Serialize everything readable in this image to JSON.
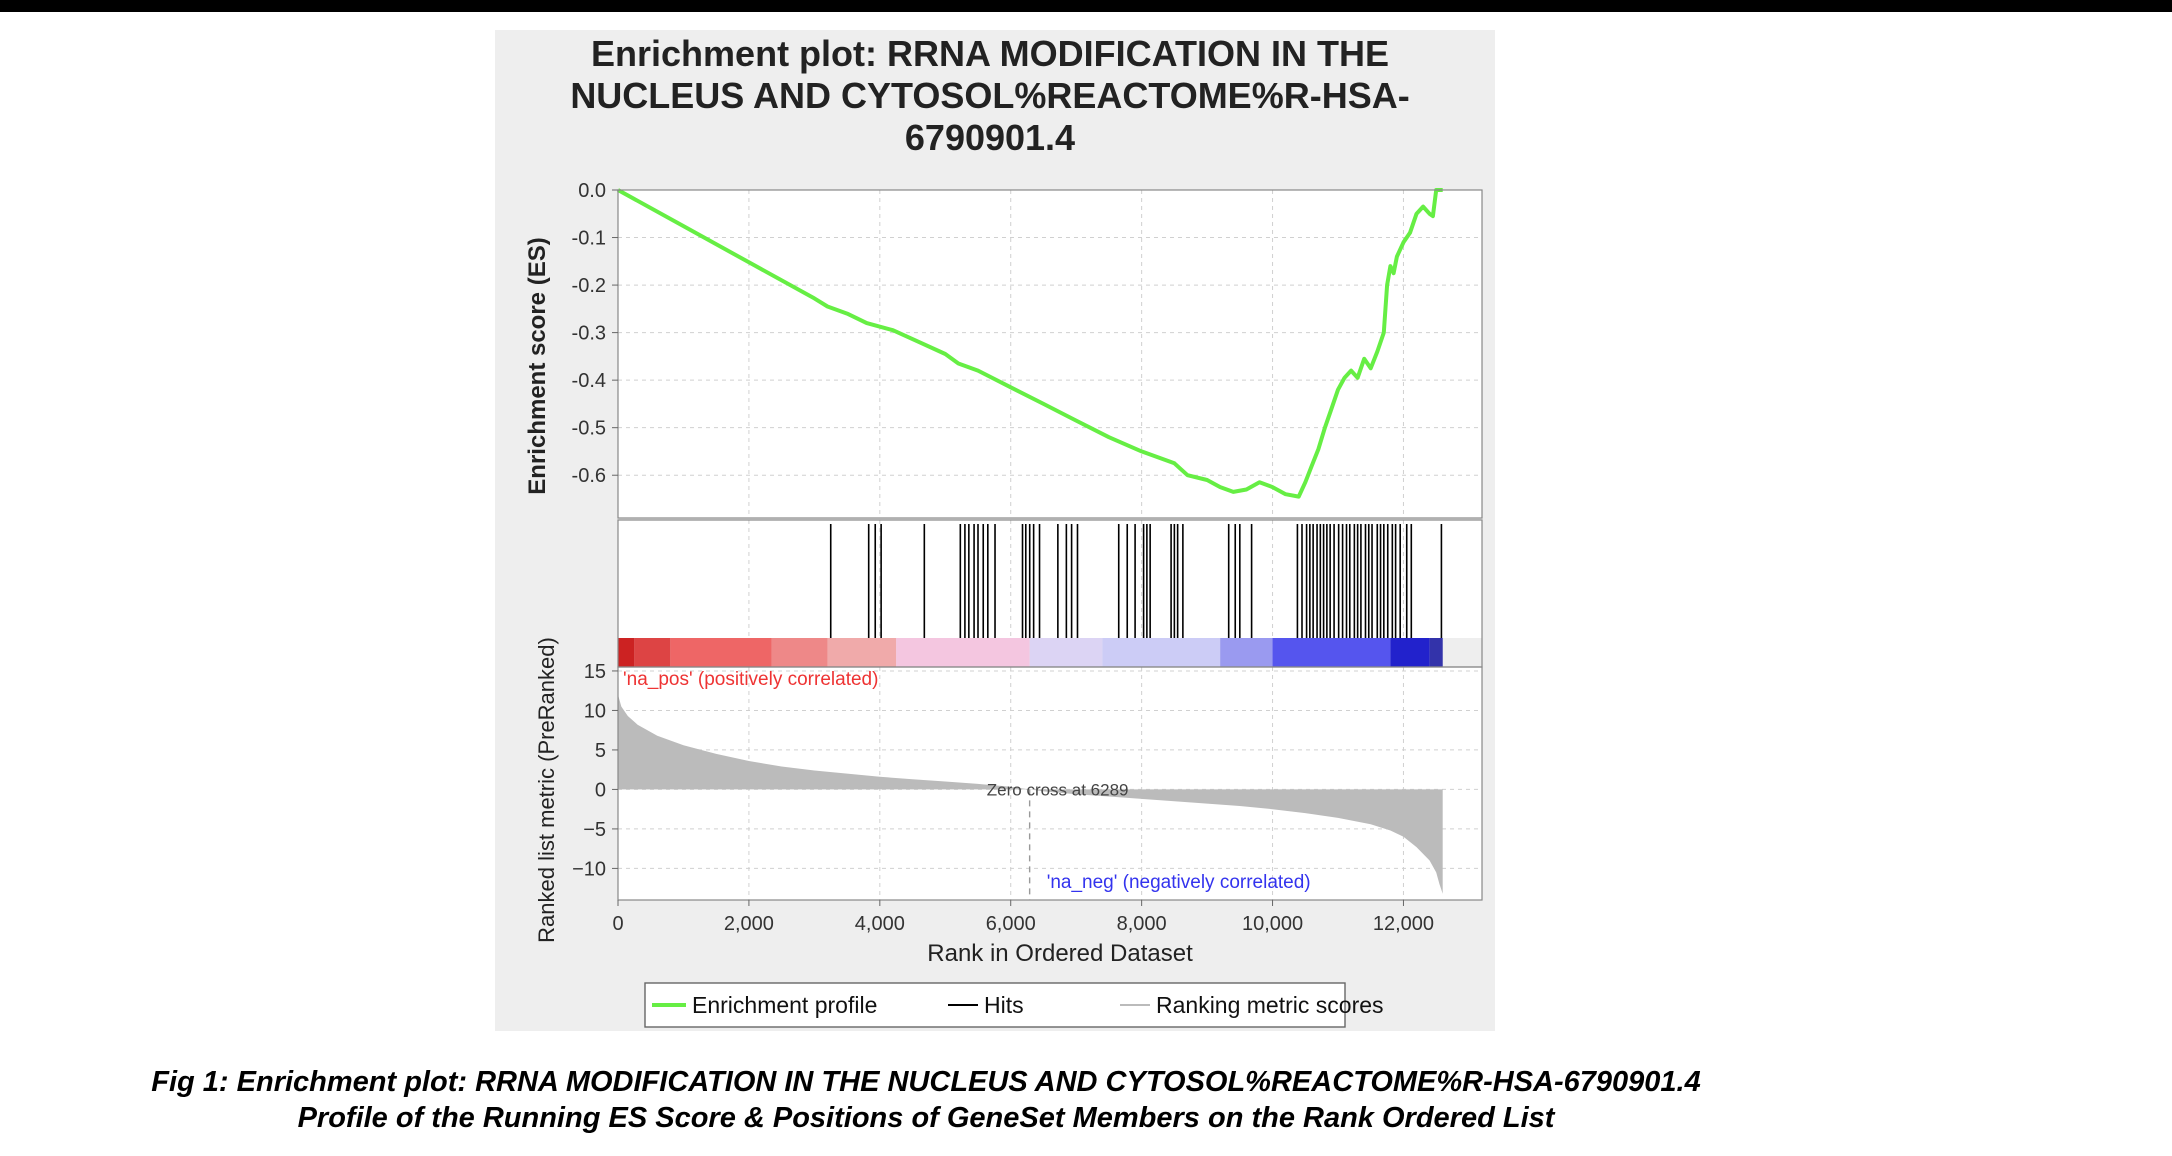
{
  "figure": {
    "caption_line1": "Fig 1: Enrichment plot: RRNA MODIFICATION IN THE NUCLEUS AND CYTOSOL%REACTOME%R-HSA-6790901.4",
    "caption_line2": "Profile of the Running ES Score & Positions of GeneSet Members on the Rank Ordered List"
  },
  "chart_data": {
    "type": "line",
    "title_lines": [
      "Enrichment plot: RRNA MODIFICATION IN THE",
      "NUCLEUS AND CYTOSOL%REACTOME%R-HSA-",
      "6790901.4"
    ],
    "xlabel": "Rank in Ordered Dataset",
    "xlim": [
      0,
      13200
    ],
    "x_ticks": [
      0,
      2000,
      4000,
      6000,
      8000,
      10000,
      12000
    ],
    "x_tick_labels": [
      "0",
      "2,000",
      "4,000",
      "6,000",
      "8,000",
      "10,000",
      "12,000"
    ],
    "es_panel": {
      "ylabel": "Enrichment score (ES)",
      "ylim": [
        -0.69,
        0.0
      ],
      "y_ticks": [
        0.0,
        -0.1,
        -0.2,
        -0.3,
        -0.4,
        -0.5,
        -0.6
      ],
      "y_tick_labels": [
        "0.0",
        "-0.1",
        "-0.2",
        "-0.3",
        "-0.4",
        "-0.5",
        "-0.6"
      ],
      "series": [
        {
          "name": "Enrichment profile",
          "color": "#66ee44",
          "x": [
            0,
            1000,
            2000,
            3000,
            3200,
            3500,
            3800,
            4200,
            4600,
            5000,
            5200,
            5500,
            6000,
            6500,
            7000,
            7500,
            8000,
            8500,
            8700,
            9000,
            9200,
            9400,
            9600,
            9800,
            10000,
            10200,
            10400,
            10500,
            10600,
            10700,
            10800,
            10900,
            11000,
            11100,
            11200,
            11300,
            11400,
            11500,
            11600,
            11700,
            11750,
            11800,
            11850,
            11900,
            12000,
            12100,
            12200,
            12300,
            12400,
            12450,
            12500,
            12600
          ],
          "y": [
            0.0,
            -0.076,
            -0.152,
            -0.228,
            -0.245,
            -0.26,
            -0.28,
            -0.295,
            -0.32,
            -0.345,
            -0.365,
            -0.38,
            -0.415,
            -0.45,
            -0.485,
            -0.52,
            -0.55,
            -0.575,
            -0.6,
            -0.61,
            -0.625,
            -0.635,
            -0.63,
            -0.615,
            -0.625,
            -0.64,
            -0.645,
            -0.615,
            -0.58,
            -0.545,
            -0.5,
            -0.46,
            -0.42,
            -0.395,
            -0.38,
            -0.395,
            -0.355,
            -0.375,
            -0.34,
            -0.3,
            -0.2,
            -0.16,
            -0.175,
            -0.14,
            -0.11,
            -0.09,
            -0.05,
            -0.035,
            -0.05,
            -0.055,
            0.0,
            0.0
          ]
        }
      ]
    },
    "hits": {
      "name": "Hits",
      "x": [
        3250,
        3830,
        3930,
        4020,
        4680,
        5230,
        5300,
        5360,
        5440,
        5500,
        5580,
        5650,
        5760,
        6180,
        6230,
        6290,
        6350,
        6440,
        6720,
        6850,
        6930,
        7020,
        7650,
        7780,
        7900,
        8030,
        8080,
        8130,
        8450,
        8500,
        8550,
        8630,
        9330,
        9430,
        9500,
        9680,
        10380,
        10450,
        10520,
        10570,
        10620,
        10680,
        10730,
        10780,
        10830,
        10880,
        10940,
        11010,
        11070,
        11130,
        11180,
        11250,
        11300,
        11350,
        11420,
        11470,
        11520,
        11600,
        11650,
        11700,
        11760,
        11830,
        11880,
        11950,
        12050,
        12120,
        12580
      ]
    },
    "rank_colorbar": {
      "colors": [
        "#cc2222",
        "#dd4444",
        "#ee6666",
        "#ee8888",
        "#f0aaaa",
        "#f4c6e0",
        "#dcd4f4",
        "#ccccf6",
        "#9a9af0",
        "#5555ee",
        "#2222cc",
        "#3333aa"
      ],
      "breaks": [
        0,
        250,
        800,
        2350,
        3200,
        4250,
        6289,
        7400,
        9200,
        10000,
        11800,
        12400,
        12600
      ]
    },
    "metric_panel": {
      "ylabel": "Ranked list metric (PreRanked)",
      "ylim": [
        -14,
        15.5
      ],
      "y_ticks": [
        15,
        10,
        5,
        0,
        -5,
        -10
      ],
      "y_tick_labels": [
        "15",
        "10",
        "5",
        "0",
        "−5",
        "−10"
      ],
      "series": [
        {
          "name": "Ranking metric scores",
          "color": "#bbbbbb",
          "x": [
            0,
            50,
            150,
            300,
            600,
            1000,
            1500,
            2000,
            2500,
            3000,
            3500,
            4000,
            4500,
            5000,
            5500,
            6000,
            6289,
            6500,
            7000,
            7500,
            8000,
            8500,
            9000,
            9500,
            10000,
            10500,
            11000,
            11500,
            11800,
            12000,
            12200,
            12400,
            12500,
            12550,
            12600
          ],
          "y": [
            12,
            10.5,
            9.3,
            8.2,
            6.8,
            5.6,
            4.5,
            3.6,
            2.9,
            2.4,
            2.0,
            1.6,
            1.3,
            1.0,
            0.7,
            0.35,
            0.0,
            -0.25,
            -0.6,
            -0.9,
            -1.2,
            -1.5,
            -1.8,
            -2.1,
            -2.5,
            -3.0,
            -3.6,
            -4.4,
            -5.2,
            -6.0,
            -7.3,
            -9.0,
            -10.5,
            -12.0,
            -13.2
          ]
        }
      ],
      "zero_cross_label": "Zero cross at 6289",
      "zero_cross_x": 6289,
      "pos_label": "'na_pos' (positively correlated)",
      "pos_color": "#ee3333",
      "neg_label": "'na_neg' (negatively correlated)",
      "neg_color": "#3333ee"
    },
    "legend": {
      "position": "bottom",
      "entries": [
        {
          "label": "Enrichment profile",
          "color": "#66ee44"
        },
        {
          "label": "Hits",
          "color": "#000000"
        },
        {
          "label": "Ranking metric scores",
          "color": "#bbbbbb"
        }
      ]
    }
  }
}
